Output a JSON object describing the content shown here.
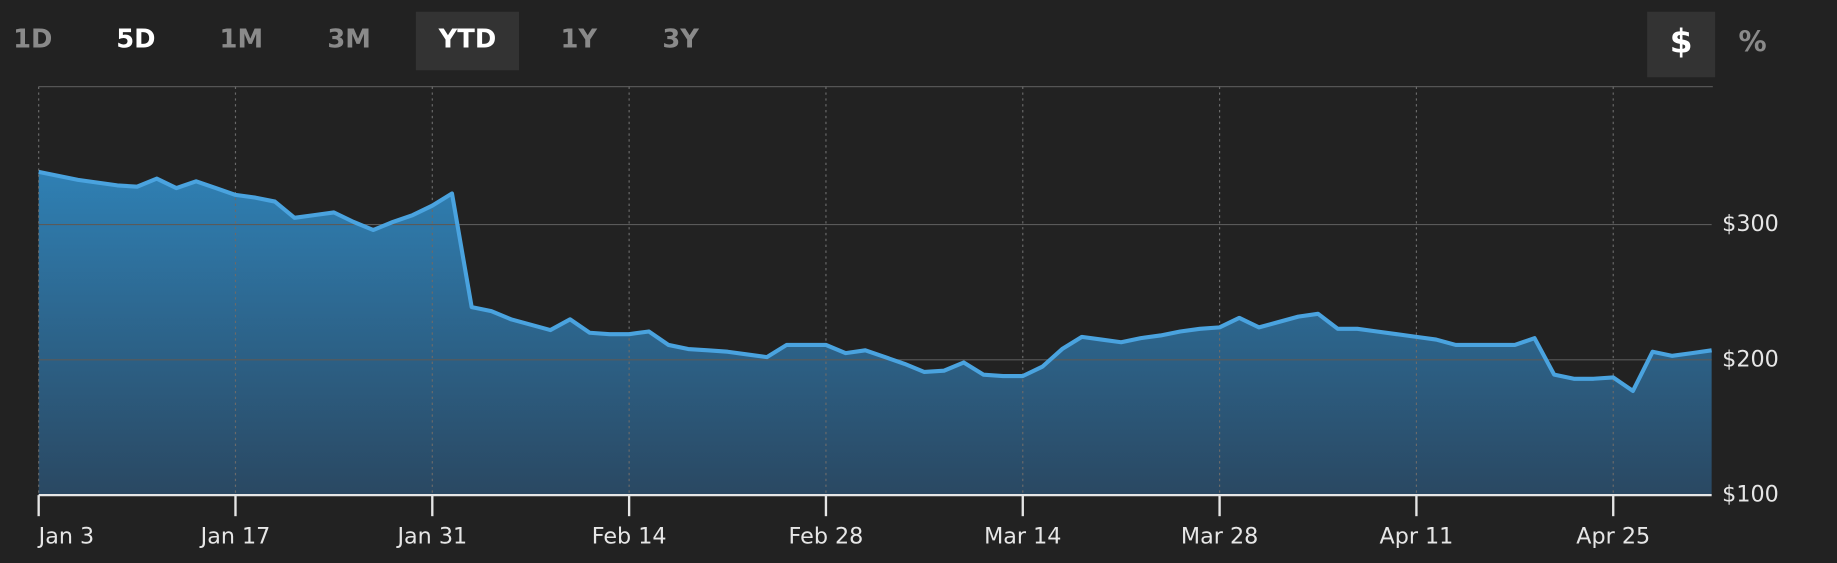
{
  "controls": {
    "ranges": [
      "1D",
      "5D",
      "1M",
      "3M",
      "YTD",
      "1Y",
      "3Y"
    ],
    "units": [
      "$",
      "%"
    ]
  },
  "chart_data": {
    "type": "area",
    "categories": [
      "Jan 3",
      null,
      null,
      null,
      null,
      null,
      null,
      null,
      null,
      null,
      "Jan 17",
      null,
      null,
      null,
      null,
      null,
      null,
      null,
      null,
      null,
      "Jan 31",
      null,
      null,
      null,
      null,
      null,
      null,
      null,
      null,
      null,
      "Feb 14",
      null,
      null,
      null,
      null,
      null,
      null,
      null,
      null,
      null,
      "Feb 28",
      null,
      null,
      null,
      null,
      null,
      null,
      null,
      null,
      null,
      "Mar 14",
      null,
      null,
      null,
      null,
      null,
      null,
      null,
      null,
      null,
      "Mar 28",
      null,
      null,
      null,
      null,
      null,
      null,
      null,
      null,
      null,
      "Apr 11",
      null,
      null,
      null,
      null,
      null,
      null,
      null,
      null,
      null,
      "Apr 25",
      null,
      null,
      null,
      null,
      null
    ],
    "values": [
      339,
      336,
      333,
      331,
      329,
      328,
      334,
      327,
      332,
      327,
      322,
      320,
      317,
      305,
      307,
      309,
      302,
      296,
      302,
      307,
      314,
      323,
      239,
      236,
      230,
      226,
      222,
      230,
      220,
      219,
      219,
      221,
      211,
      208,
      207,
      206,
      204,
      202,
      211,
      211,
      211,
      205,
      207,
      202,
      197,
      191,
      192,
      198,
      189,
      188,
      188,
      195,
      208,
      217,
      215,
      213,
      216,
      218,
      221,
      223,
      224,
      231,
      224,
      228,
      232,
      234,
      223,
      223,
      221,
      219,
      217,
      215,
      211,
      211,
      211,
      211,
      216,
      189,
      186,
      186,
      187,
      177,
      206,
      203,
      205,
      207
    ],
    "color": "#4aa3df",
    "ylim": [
      100,
      402
    ],
    "yticks": [
      {
        "value": 100,
        "label": "$100"
      },
      {
        "value": 200,
        "label": "$200"
      },
      {
        "value": 300,
        "label": "$300"
      }
    ],
    "grid": true
  }
}
